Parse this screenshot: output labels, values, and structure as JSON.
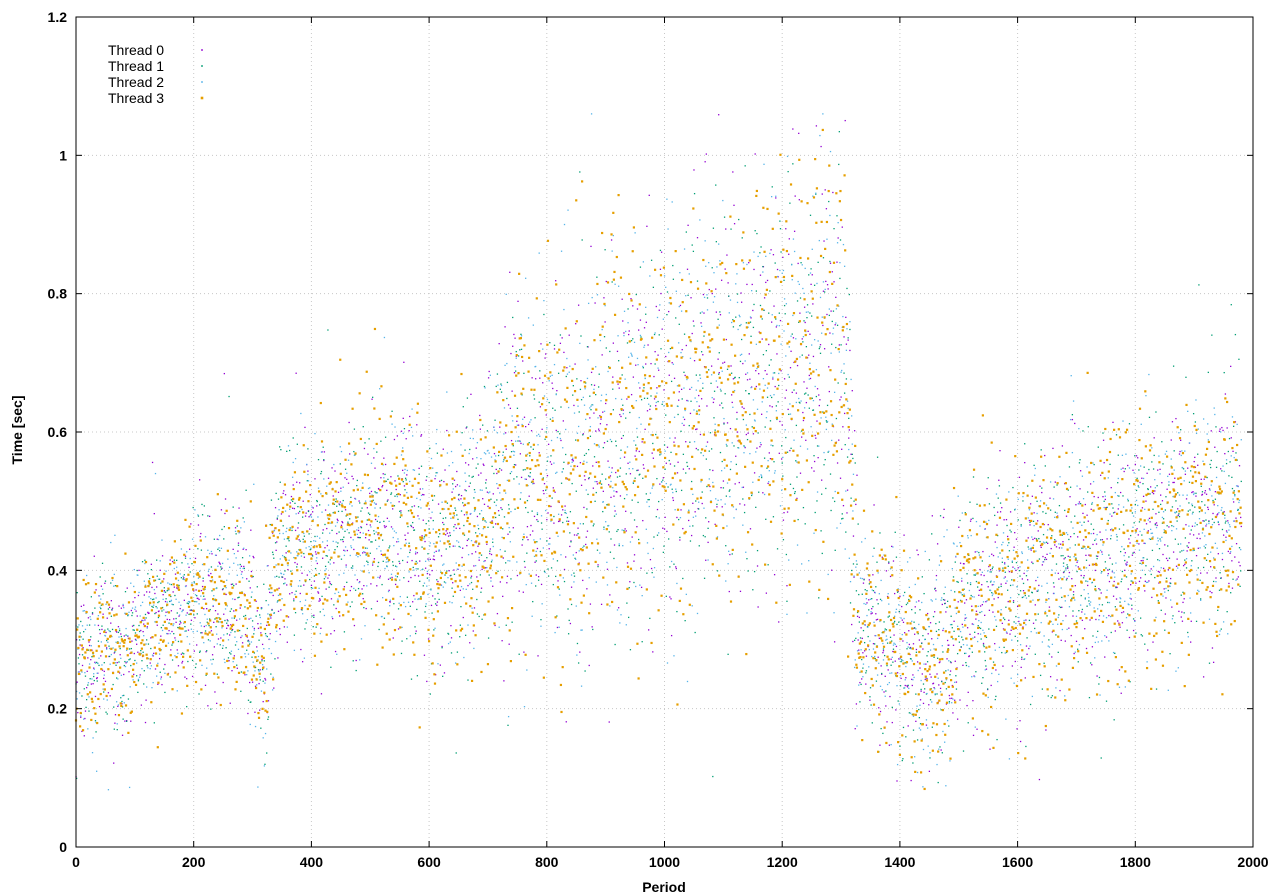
{
  "chart_data": {
    "type": "scatter",
    "title": "",
    "xlabel": "Period",
    "ylabel": "Time [sec]",
    "xlim": [
      0,
      2000
    ],
    "ylim": [
      0,
      1.2
    ],
    "xticks": [
      0,
      200,
      400,
      600,
      800,
      1000,
      1200,
      1400,
      1600,
      1800,
      2000
    ],
    "yticks": [
      0,
      0.2,
      0.4,
      0.6,
      0.8,
      1.0,
      1.2
    ],
    "xtick_labels": [
      "0",
      "200",
      "400",
      "600",
      "800",
      "1000",
      "1200",
      "1400",
      "1600",
      "1800",
      "2000"
    ],
    "ytick_labels": [
      "0",
      "0.2",
      "0.4",
      "0.6",
      "0.8",
      "1",
      "1.2"
    ],
    "grid": true,
    "legend_position": "top-left",
    "x_period_range": [
      0,
      1980
    ],
    "trend": {
      "x": [
        0,
        100,
        200,
        280,
        300,
        320,
        340,
        400,
        500,
        600,
        700,
        740,
        800,
        900,
        1000,
        1100,
        1200,
        1280,
        1310,
        1330,
        1400,
        1450,
        1500,
        1600,
        1700,
        1800,
        1900,
        1980
      ],
      "y": [
        0.27,
        0.3,
        0.36,
        0.36,
        0.33,
        0.25,
        0.42,
        0.43,
        0.47,
        0.43,
        0.46,
        0.55,
        0.53,
        0.59,
        0.6,
        0.66,
        0.69,
        0.7,
        0.68,
        0.31,
        0.29,
        0.25,
        0.33,
        0.38,
        0.41,
        0.44,
        0.46,
        0.5
      ]
    },
    "spread": {
      "x": [
        0,
        300,
        400,
        700,
        740,
        1000,
        1200,
        1310,
        1330,
        1500,
        1980
      ],
      "y": [
        0.05,
        0.07,
        0.08,
        0.09,
        0.13,
        0.14,
        0.15,
        0.15,
        0.07,
        0.09,
        0.09
      ]
    },
    "series": [
      {
        "name": "Thread 0",
        "color": "#9400d3",
        "marker": "dot-small",
        "points_per_period": 1
      },
      {
        "name": "Thread 1",
        "color": "#009e73",
        "marker": "dot-small",
        "points_per_period": 1
      },
      {
        "name": "Thread 2",
        "color": "#56b4e9",
        "marker": "dot-small",
        "points_per_period": 1
      },
      {
        "name": "Thread 3",
        "color": "#e69f00",
        "marker": "dot-large",
        "points_per_period": 1
      }
    ]
  }
}
